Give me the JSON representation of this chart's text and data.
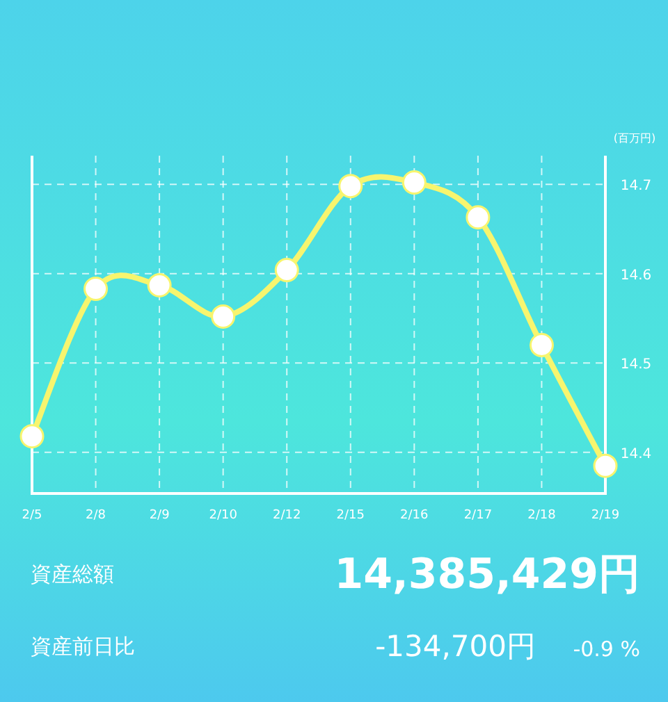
{
  "chart_data": {
    "type": "line",
    "ylabel": "(百万円)",
    "categories": [
      "2/5",
      "2/8",
      "2/9",
      "2/10",
      "2/12",
      "2/15",
      "2/16",
      "2/17",
      "2/18",
      "2/19"
    ],
    "series": [
      {
        "color": "#f7f56e",
        "values": [
          14.418,
          14.583,
          14.587,
          14.552,
          14.604,
          14.698,
          14.702,
          14.663,
          14.52,
          14.385
        ]
      }
    ],
    "ylim": [
      14.354,
      14.732
    ],
    "yticks": [
      14.4,
      14.5,
      14.6,
      14.7
    ],
    "grid": true,
    "marker": "circle",
    "line_style": "solid",
    "annotations": [
      "資産総額",
      "14,385,429円",
      "資産前日比",
      "-134,700円",
      "-0.9 %"
    ]
  }
}
